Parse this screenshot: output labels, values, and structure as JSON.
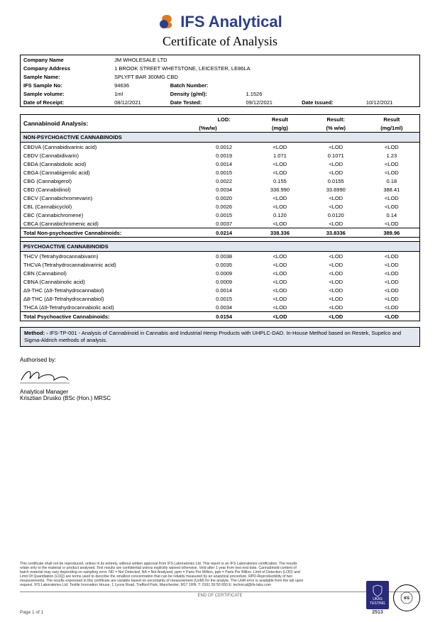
{
  "brand_name": "IFS Analytical",
  "title": "Certificate of Analysis",
  "meta": {
    "company_name_lbl": "Company Name",
    "company_name": "JM WHOLESALE LTD",
    "company_address_lbl": "Company Address",
    "company_address": "1 BROOK STREET WHETSTONE, LEICESTER, LE86LA",
    "sample_name_lbl": "Sample Name:",
    "sample_name": "SPLYFT BAR 300MG CBD",
    "ifs_sample_no_lbl": "IFS Sample No:",
    "ifs_sample_no": "94636",
    "batch_number_lbl": "Batch Number:",
    "batch_number": "",
    "sample_volume_lbl": "Sample volume:",
    "sample_volume": "1ml",
    "density_lbl": "Density (g/ml):",
    "density": "1.1526",
    "date_receipt_lbl": "Date of Receipt:",
    "date_receipt": "08/12/2021",
    "date_tested_lbl": "Date Tested:",
    "date_tested": "09/12/2021",
    "date_issued_lbl": "Date Issued:",
    "date_issued": "10/12/2021"
  },
  "cann": {
    "heading": "Cannabinoid Analysis:",
    "col_lod": "LOD:",
    "col_lod_unit": "(%w/w)",
    "col_r1": "Result",
    "col_r1_unit": "(mg/g)",
    "col_r2": "Result:",
    "col_r2_unit": "(% w/w)",
    "col_r3": "Result",
    "col_r3_unit": "(mg/1ml)",
    "sec1": "NON-PSYCHOACTIVE CANNABINOIDS",
    "rows1": [
      {
        "n": "CBDVA (Cannabidivarinic acid)",
        "lod": "0.0012",
        "a": "<LOD",
        "b": "<LOD",
        "c": "<LOD"
      },
      {
        "n": "CBDV (Cannabidivarin)",
        "lod": "0.0019",
        "a": "1.071",
        "b": "0.1071",
        "c": "1.23"
      },
      {
        "n": "CBDA (Cannabidiolic acid)",
        "lod": "0.0014",
        "a": "<LOD",
        "b": "<LOD",
        "c": "<LOD"
      },
      {
        "n": "CBGA (Cannabigerolic acid)",
        "lod": "0.0015",
        "a": "<LOD",
        "b": "<LOD",
        "c": "<LOD"
      },
      {
        "n": "CBG (Cannabigerol)",
        "lod": "0.0022",
        "a": "0.155",
        "b": "0.0155",
        "c": "0.18"
      },
      {
        "n": "CBD (Cannabidinol)",
        "lod": "0.0034",
        "a": "336.990",
        "b": "33.6990",
        "c": "388.41"
      },
      {
        "n": "CBCV (Cannabichromevarin)",
        "lod": "0.0020",
        "a": "<LOD",
        "b": "<LOD",
        "c": "<LOD"
      },
      {
        "n": "CBL (Cannabicyclol)",
        "lod": "0.0026",
        "a": "<LOD",
        "b": "<LOD",
        "c": "<LOD"
      },
      {
        "n": "CBC (Cannabichromene)",
        "lod": "0.0015",
        "a": "0.120",
        "b": "0.0120",
        "c": "0.14"
      },
      {
        "n": "CBCA (Cannabichromenic acid)",
        "lod": "0.0037",
        "a": "<LOD",
        "b": "<LOD",
        "c": "<LOD"
      }
    ],
    "total1": {
      "n": "Total Non-psychoactive Cannabinoids:",
      "lod": "0.0214",
      "a": "338.336",
      "b": "33.8336",
      "c": "389.96"
    },
    "sec2": "PSYCHOACTIVE CANNABINOIDS",
    "rows2": [
      {
        "n": "THCV (Tetrahydrocannabivarin)",
        "lod": "0.0038",
        "a": "<LOD",
        "b": "<LOD",
        "c": "<LOD"
      },
      {
        "n": "THCVA (Tetrahydrocannabivarinic acid)",
        "lod": "0.0035",
        "a": "<LOD",
        "b": "<LOD",
        "c": "<LOD"
      },
      {
        "n": "CBN (Cannabinol)",
        "lod": "0.0009",
        "a": "<LOD",
        "b": "<LOD",
        "c": "<LOD"
      },
      {
        "n": "CBNA (Cannabinolic acid)",
        "lod": "0.0009",
        "a": "<LOD",
        "b": "<LOD",
        "c": "<LOD"
      },
      {
        "n": "Δ9-THC (Δ9-Tetrahydrocannabiol)",
        "lod": "0.0014",
        "a": "<LOD",
        "b": "<LOD",
        "c": "<LOD"
      },
      {
        "n": "Δ8-THC (Δ8-Tetrahydrocannabiol)",
        "lod": "0.0015",
        "a": "<LOD",
        "b": "<LOD",
        "c": "<LOD"
      },
      {
        "n": "THCA (Δ9-Tetrahydrocannabiolic acid)",
        "lod": "0.0034",
        "a": "<LOD",
        "b": "<LOD",
        "c": "<LOD"
      }
    ],
    "total2": {
      "n": "Total Psychoactive Cannabinoids:",
      "lod": "0.0154",
      "a": "<LOD",
      "b": "<LOD",
      "c": "<LOD"
    }
  },
  "method_label": "Method: -",
  "method_text": "IFS-TP-001 - Analysis of Cannabinoid in Cannabis and Industrial Hemp Products with UHPLC-DAD. In-House Method based on Restek, Supelco and Sigma-Aldrich methods of analysis.",
  "auth": {
    "by": "Authorised by:",
    "role": "Analytical Manager",
    "name": "Krisztian Drusko (BSc (Hon.) MRSC"
  },
  "disclaimer": "This certificate shall not be reproduced, unless in its entirety, without written approval from IFS Laboratories Ltd. This report is an IFS Laboratories certification. The results relate only to the material or product analysed. Test results are confidential unless explicitly waived otherwise. Void after 1 year from test end date. Cannabinoid content of batch material may vary depending on sampling error. ND = Not Detected, NA = Not Analysed, ppm = Parts Per Million, ppb = Parts Per Billion. Limit of Detection (LOD) and Limit Of Quantitation (LOQ) are terms used to describe the smallest concentration that can be reliably measured by an analytical procedure. RPD-Reproducibility of two measurements. The results expressed in this certificate are variable based on uncertainty of measurement (UoM) for the analyte. The UoM error is available from the lab upon request. IFS Laboratories Ltd. Textile Innovation House, 1 Lyons Road, Trafford Park, Manchester, M17 1RN. T: 0161 50 50 650 E: technical@ifs-labs.com",
  "footer": {
    "page": "Page 1 of 1",
    "end": "END OF CERTIFICATE",
    "ukas_label": "UKAS TESTING",
    "ukas_no": "2513",
    "ifs_badge": "INDEPENDENTLY TESTED · BE LAB SURE · IFS"
  },
  "colors": {
    "brand": "#2a3e8f",
    "section_bg": "#e2e6ef"
  }
}
